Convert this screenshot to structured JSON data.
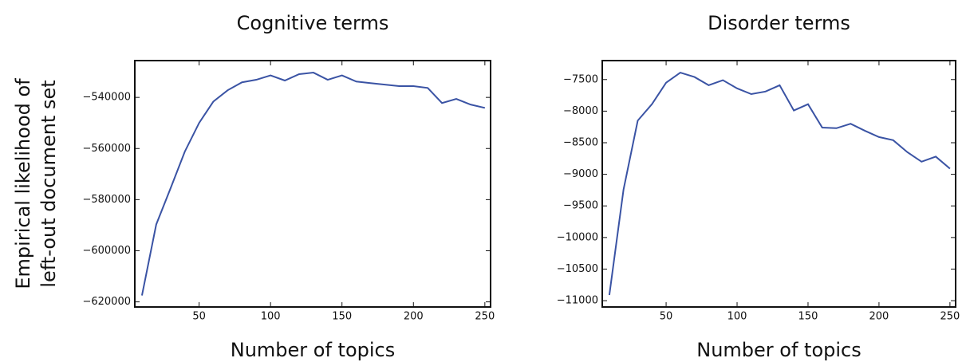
{
  "chart_data": [
    {
      "type": "line",
      "title": "Cognitive terms",
      "xlabel": "Number of topics",
      "ylabel": [
        "Empirical likelihood of",
        "left-out document set"
      ],
      "x": [
        10,
        20,
        30,
        40,
        50,
        60,
        70,
        80,
        90,
        100,
        110,
        120,
        130,
        140,
        150,
        160,
        170,
        180,
        190,
        200,
        210,
        220,
        230,
        240,
        250
      ],
      "series": [
        {
          "color": "#3a53a4",
          "values": [
            -617500,
            -589700,
            -575600,
            -561200,
            -550000,
            -541600,
            -537200,
            -534100,
            -533100,
            -531400,
            -533400,
            -530900,
            -530300,
            -533100,
            -531400,
            -533800,
            -534400,
            -535000,
            -535600,
            -535600,
            -536300,
            -542200,
            -540600,
            -542800,
            -544100
          ]
        }
      ],
      "xlim": [
        5,
        254
      ],
      "xticks": [
        50,
        100,
        150,
        200,
        250
      ],
      "ylim": [
        -622000,
        -525600
      ],
      "yticks": [
        {
          "value": -620000,
          "label": "−620000"
        },
        {
          "value": -600000,
          "label": "−600000"
        },
        {
          "value": -580000,
          "label": "−580000"
        },
        {
          "value": -560000,
          "label": "−560000"
        },
        {
          "value": -540000,
          "label": "−540000"
        }
      ]
    },
    {
      "type": "line",
      "title": "Disorder terms",
      "xlabel": "Number of topics",
      "x": [
        10,
        20,
        30,
        40,
        50,
        60,
        70,
        80,
        90,
        100,
        110,
        120,
        130,
        140,
        150,
        160,
        170,
        180,
        190,
        200,
        210,
        220,
        230,
        240,
        250
      ],
      "series": [
        {
          "color": "#3a53a4",
          "values": [
            -10910,
            -9240,
            -8150,
            -7890,
            -7550,
            -7390,
            -7460,
            -7590,
            -7510,
            -7640,
            -7730,
            -7690,
            -7590,
            -7990,
            -7890,
            -8260,
            -8270,
            -8200,
            -8310,
            -8410,
            -8460,
            -8650,
            -8800,
            -8720,
            -8910
          ]
        }
      ],
      "xlim": [
        5,
        254
      ],
      "xticks": [
        50,
        100,
        150,
        200,
        250
      ],
      "ylim": [
        -11100,
        -7200
      ],
      "yticks": [
        {
          "value": -11000,
          "label": "−11000"
        },
        {
          "value": -10500,
          "label": "−10500"
        },
        {
          "value": -10000,
          "label": "−10000"
        },
        {
          "value": -9500,
          "label": "−9500"
        },
        {
          "value": -9000,
          "label": "−9000"
        },
        {
          "value": -8500,
          "label": "−8500"
        },
        {
          "value": -8000,
          "label": "−8000"
        },
        {
          "value": -7500,
          "label": "−7500"
        }
      ]
    }
  ]
}
